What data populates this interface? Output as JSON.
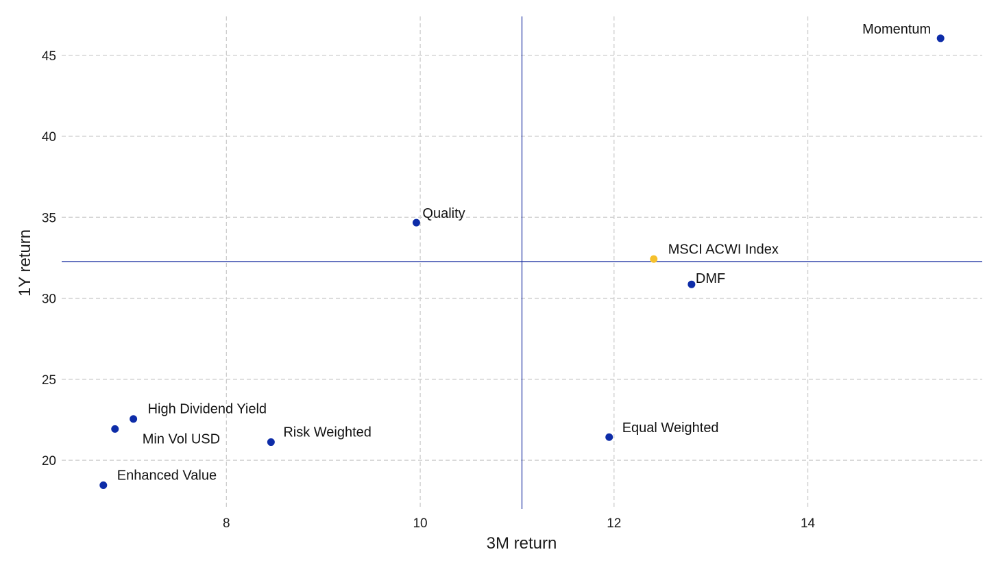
{
  "chart_data": {
    "type": "scatter",
    "title": "",
    "xlabel": "3M return",
    "ylabel": "1Y return",
    "xlim": [
      6.3,
      15.8
    ],
    "ylim": [
      17.0,
      47.4
    ],
    "x_ticks": [
      8,
      10,
      12,
      14
    ],
    "y_ticks": [
      20,
      25,
      30,
      35,
      40,
      45
    ],
    "grid": true,
    "reference_lines": {
      "x": 11.05,
      "y": 32.27,
      "color": "#1a2fa0"
    },
    "points": [
      {
        "label": "Momentum",
        "x": 15.37,
        "y": 46.05,
        "color": "#0d2ca8"
      },
      {
        "label": "Quality",
        "x": 9.96,
        "y": 34.67,
        "color": "#0d2ca8"
      },
      {
        "label": "MSCI ACWI Index",
        "x": 12.41,
        "y": 32.42,
        "color": "#f5c02c"
      },
      {
        "label": "DMF",
        "x": 12.8,
        "y": 30.86,
        "color": "#0d2ca8"
      },
      {
        "label": "High Dividend Yield",
        "x": 7.04,
        "y": 22.55,
        "color": "#0d2ca8"
      },
      {
        "label": "Min Vol USD",
        "x": 6.85,
        "y": 21.93,
        "color": "#0d2ca8"
      },
      {
        "label": "Risk Weighted",
        "x": 8.46,
        "y": 21.12,
        "color": "#0d2ca8"
      },
      {
        "label": "Equal Weighted",
        "x": 11.95,
        "y": 21.43,
        "color": "#0d2ca8"
      },
      {
        "label": "Enhanced Value",
        "x": 6.73,
        "y": 18.46,
        "color": "#0d2ca8"
      }
    ]
  }
}
